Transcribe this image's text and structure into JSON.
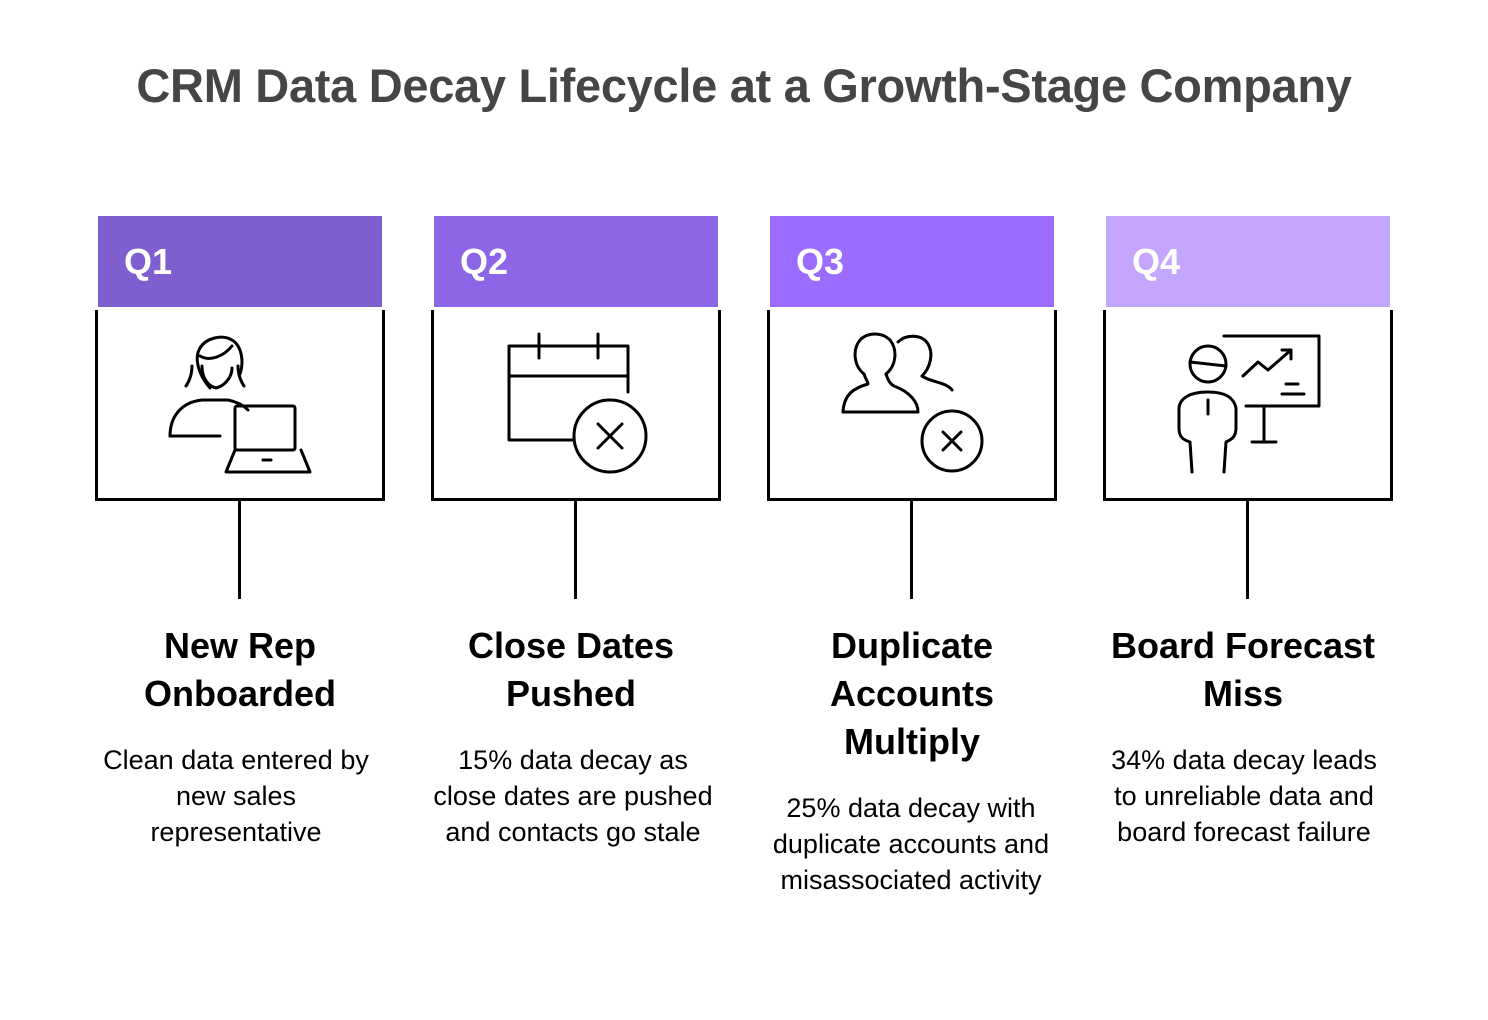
{
  "title": "CRM Data Decay Lifecycle at a Growth-Stage Company",
  "stages": [
    {
      "label": "Q1",
      "color": "#7f5fcf",
      "icon": "person-laptop-icon",
      "heading": "New Rep Onboarded",
      "description": "Clean data entered by new sales representative"
    },
    {
      "label": "Q2",
      "color": "#8c66e6",
      "icon": "calendar-x-icon",
      "heading": "Close Dates Pushed",
      "description": "15% data decay as close dates are pushed and contacts go stale"
    },
    {
      "label": "Q3",
      "color": "#9a6cff",
      "icon": "users-x-icon",
      "heading": "Duplicate Accounts Multiply",
      "description": "25% data decay with duplicate accounts and misassociated activity"
    },
    {
      "label": "Q4",
      "color": "#c4a6ff",
      "icon": "presenter-chart-icon",
      "heading": "Board Forecast Miss",
      "description": "34% data decay leads to unreliable data and board forecast failure"
    }
  ]
}
